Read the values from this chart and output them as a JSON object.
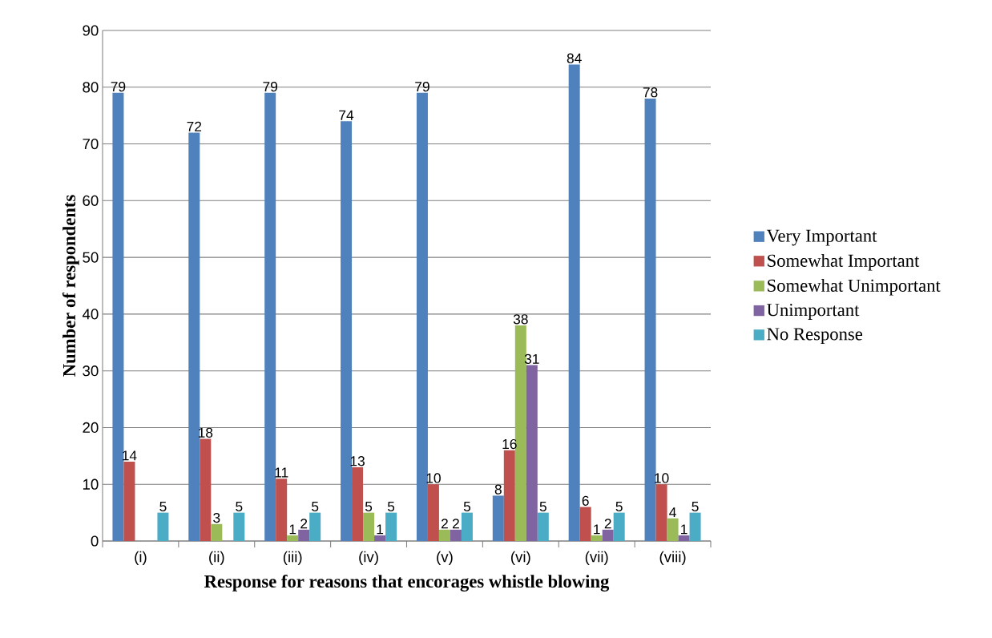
{
  "chart_data": {
    "type": "bar",
    "xlabel": "Response for reasons that encorages whistle blowing",
    "ylabel": "Number  of respondents",
    "categories": [
      "(i)",
      "(ii)",
      "(iii)",
      "(iv)",
      "(v)",
      "(vi)",
      "(vii)",
      "(viii)"
    ],
    "series": [
      {
        "name": "Very Important",
        "color": "#4f81bd",
        "values": [
          79,
          72,
          79,
          74,
          79,
          8,
          84,
          78
        ],
        "value_labels": [
          "79",
          "72",
          "79",
          "74",
          "79",
          "8",
          "84",
          "78"
        ]
      },
      {
        "name": "Somewhat Important",
        "color": "#c0504d",
        "values": [
          14,
          18,
          11,
          13,
          10,
          16,
          6,
          10
        ],
        "value_labels": [
          "14",
          "18",
          "11",
          "13",
          "10",
          "16",
          "6",
          "10"
        ]
      },
      {
        "name": "Somewhat Unimportant",
        "color": "#9bbb59",
        "values": [
          0,
          3,
          1,
          5,
          2,
          38,
          1,
          4
        ],
        "value_labels": [
          null,
          "3",
          "1",
          "5",
          "2",
          "38",
          "1",
          "4"
        ]
      },
      {
        "name": "Unimportant",
        "color": "#8064a2",
        "values": [
          0,
          0,
          2,
          1,
          2,
          31,
          2,
          1
        ],
        "value_labels": [
          null,
          null,
          "2",
          "1",
          "2",
          "31",
          "2",
          "1"
        ]
      },
      {
        "name": "No Response",
        "color": "#4bacc6",
        "values": [
          5,
          5,
          5,
          5,
          5,
          5,
          5,
          5
        ],
        "value_labels": [
          "5",
          "5",
          "5",
          "5",
          "5",
          "5",
          "5",
          "5"
        ]
      }
    ],
    "ylim": [
      0,
      90
    ],
    "yticks": [
      0,
      10,
      20,
      30,
      40,
      50,
      60,
      70,
      80,
      90
    ],
    "grid": "y",
    "legend": "right"
  }
}
